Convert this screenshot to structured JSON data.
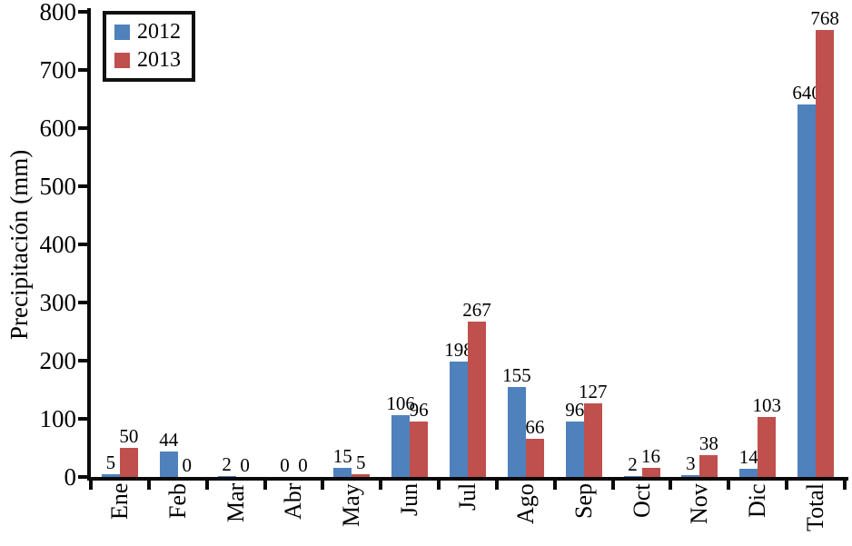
{
  "chart_data": {
    "type": "bar",
    "title": "",
    "categories": [
      "Ene",
      "Feb",
      "Mar",
      "Abr",
      "May",
      "Jun",
      "Jul",
      "Ago",
      "Sep",
      "Oct",
      "Nov",
      "Dic",
      "Total"
    ],
    "series": [
      {
        "name": "2012",
        "color": "#4F81BD",
        "values": [
          5,
          44,
          2,
          0,
          15,
          106,
          198,
          155,
          96,
          2,
          3,
          14,
          640
        ]
      },
      {
        "name": "2013",
        "color": "#C0504D",
        "values": [
          50,
          0,
          0,
          0,
          5,
          96,
          267,
          66,
          127,
          16,
          38,
          103,
          768
        ]
      }
    ],
    "xlabel": "",
    "ylabel": "Precipitación (mm)",
    "ylim": [
      0,
      800
    ],
    "yticks": [
      0,
      100,
      200,
      300,
      400,
      500,
      600,
      700,
      800
    ],
    "grid": false,
    "legend_position": "top-left",
    "data_labels": true,
    "axis_color": "#0a0a0a"
  }
}
